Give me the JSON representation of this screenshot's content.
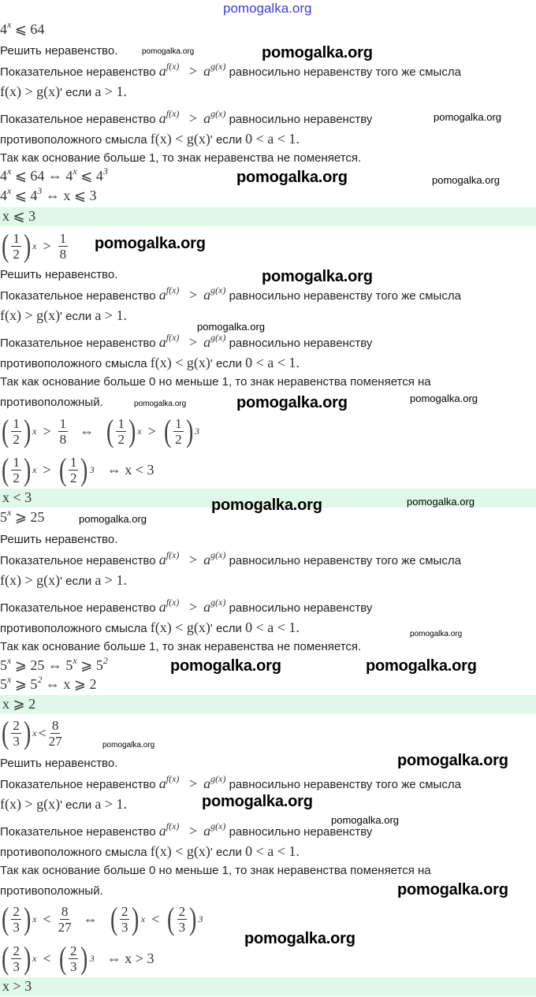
{
  "header": "pomogalka.org",
  "watermark": "pomogalka.org",
  "colors": {
    "answer_bg": "#dff8e7",
    "header_link": "#3d3dd6"
  },
  "common": {
    "solve": "Решить неравенство.",
    "rule_prefix": "Показательное неравенство",
    "base": "a",
    "exp_f": "f(x)",
    "exp_g": "g(x)",
    "gt": ">",
    "tail_same": "равносильно неравенству того же смысла",
    "tail_short": "равносильно неравенству",
    "same_math": "f(x)  >  g(x)",
    "if_word": "' если",
    "same_cond": "a  >  1.",
    "opposite_text": "противоположного смысла",
    "opp_math": "f(x)  <  g(x)",
    "opp_cond": "0  <  a  <  1."
  },
  "problems": [
    {
      "statement": {
        "base": "4",
        "exp": "x",
        "rest": "⩽ 64"
      },
      "conclusion": [
        "Так как основание больше 1, то знак неравенства не поменяется."
      ],
      "step1": [
        "4",
        "x",
        "⩽ 64   ⇔   4",
        "x",
        "⩽ 4",
        "3"
      ],
      "step2": [
        "4",
        "x",
        "⩽ 4",
        "3",
        "  ⇔   x ⩽ 3"
      ],
      "answer": "x ⩽ 3"
    },
    {
      "statement": {
        "num": "1",
        "den": "2",
        "exp": "x",
        "rel": ">",
        "rnum": "1",
        "rden": "8"
      },
      "conclusion": [
        "Так как основание больше 0 но меньше 1, то знак неравенства поменяется на",
        "противоположный."
      ],
      "step1": {
        "num": "1",
        "den": "2",
        "exp": "x",
        "rel": ">",
        "rnum": "1",
        "rden": "8",
        "equiv": "⇔",
        "num2": "1",
        "den2": "2",
        "exp2": "x",
        "rel2": ">",
        "num3": "1",
        "den3": "2",
        "exp3": "3"
      },
      "step2": {
        "num": "1",
        "den": "2",
        "exp": "x",
        "rel": ">",
        "num2": "1",
        "den2": "2",
        "exp2": "3",
        "tail": "⇔   x < 3"
      },
      "answer": "x < 3"
    },
    {
      "statement": {
        "base": "5",
        "exp": "x",
        "rest": "⩾ 25"
      },
      "conclusion": [
        "Так как основание больше 1, то знак неравенства не поменяется."
      ],
      "step1": [
        "5",
        "x",
        "⩾ 25   ⇔   5",
        "x",
        "⩾ 5",
        "2"
      ],
      "step2": [
        "5",
        "x",
        "⩾ 5",
        "2",
        "  ⇔   x ⩾ 2"
      ],
      "answer": "x ⩾ 2"
    },
    {
      "statement": {
        "num": "2",
        "den": "3",
        "exp": "x",
        "rel": "<",
        "rnum": "8",
        "rden": "27"
      },
      "conclusion": [
        "Так как основание больше 0 но меньше 1, то знак неравенства поменяется на",
        "противоположный."
      ],
      "step1": {
        "num": "2",
        "den": "3",
        "exp": "x",
        "rel": "<",
        "rnum": "8",
        "rden": "27",
        "equiv": "⇔",
        "num2": "2",
        "den2": "3",
        "exp2": "x",
        "rel2": "<",
        "num3": "2",
        "den3": "3",
        "exp3": "3"
      },
      "step2": {
        "num": "2",
        "den": "3",
        "exp": "x",
        "rel": "<",
        "num2": "2",
        "den2": "3",
        "exp2": "3",
        "tail": "⇔   x > 3"
      },
      "answer": "x > 3"
    }
  ]
}
